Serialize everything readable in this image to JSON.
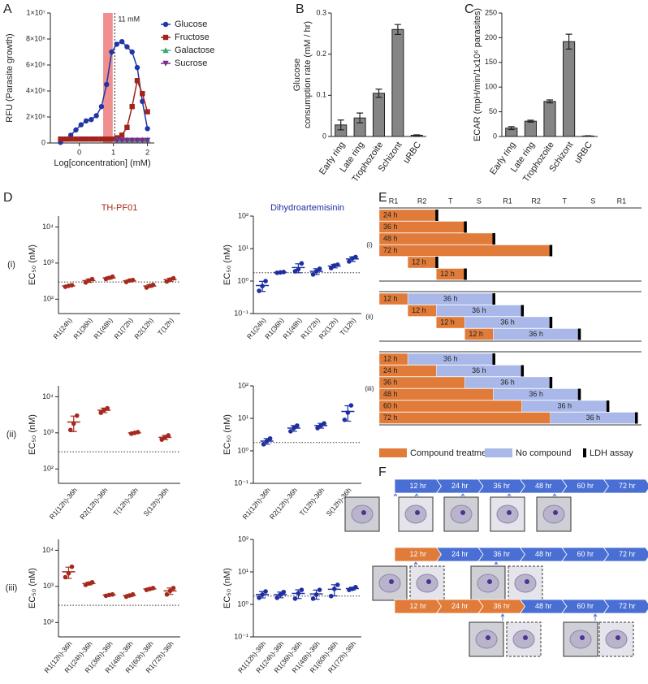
{
  "chart_data": [
    {
      "type": "line",
      "panel": "A",
      "xlabel": "Log[concentration] (mM)",
      "ylabel": "RFU (Parasite growth)",
      "x": [
        -0.55,
        -0.4,
        -0.25,
        -0.1,
        0.05,
        0.2,
        0.35,
        0.5,
        0.65,
        0.8,
        0.95,
        1.1,
        1.25,
        1.4,
        1.55,
        1.7,
        1.85,
        2.0
      ],
      "series": [
        {
          "name": "Glucose",
          "color": "#1f35a8",
          "marker": "circle",
          "values": [
            50000,
            300000,
            600000,
            1000000,
            1400000,
            1700000,
            1800000,
            2100000,
            2800000,
            4500000,
            7000000,
            7600000,
            7800000,
            7400000,
            7000000,
            5800000,
            3200000,
            1100000
          ]
        },
        {
          "name": "Fructose",
          "color": "#a3221b",
          "marker": "square",
          "values": [
            300000,
            300000,
            300000,
            300000,
            300000,
            300000,
            300000,
            300000,
            300000,
            300000,
            300000,
            400000,
            600000,
            1200000,
            2800000,
            4800000,
            3800000,
            2400000
          ]
        },
        {
          "name": "Galactose",
          "color": "#3ea37a",
          "marker": "triangle-up",
          "values": [
            null,
            null,
            null,
            null,
            null,
            null,
            null,
            null,
            null,
            null,
            null,
            250000,
            250000,
            250000,
            250000,
            250000,
            250000,
            250000
          ]
        },
        {
          "name": "Sucrose",
          "color": "#7b2a8f",
          "marker": "triangle-down",
          "values": [
            null,
            null,
            null,
            null,
            null,
            null,
            null,
            null,
            null,
            null,
            null,
            200000,
            200000,
            200000,
            200000,
            200000,
            200000,
            200000
          ]
        }
      ],
      "xlim": [
        -0.85,
        2.2
      ],
      "xticks": [
        0,
        1,
        2
      ],
      "ylim": [
        0,
        10000000
      ],
      "yticks": [
        0,
        {
          "value": 2000000,
          "label": "2×10⁶"
        },
        {
          "value": 4000000,
          "label": "4×10⁶"
        },
        {
          "value": 6000000,
          "label": "6×10⁶"
        },
        {
          "value": 8000000,
          "label": "8×10⁶"
        },
        {
          "value": 10000000,
          "label": "1×10⁷"
        }
      ],
      "shaded": [
        0.7,
        0.98
      ],
      "shaded_color": "#ef8f8f",
      "vline": 1.04,
      "annotation": "11 mM",
      "legend": "top-right"
    },
    {
      "type": "bar",
      "panel": "B",
      "ylabel": [
        "Glucose",
        "consumption rate (mM / hr)"
      ],
      "categories": [
        "Early ring",
        "Late ring",
        "Trophozoite",
        "Schizont",
        "uRBC"
      ],
      "values": [
        0.028,
        0.045,
        0.105,
        0.26,
        0.003
      ],
      "errors": [
        0.012,
        0.012,
        0.01,
        0.012,
        0.001
      ],
      "color": "#858585",
      "ylim": [
        0,
        0.3
      ],
      "yticks": [
        0,
        0.1,
        0.2,
        0.3
      ]
    },
    {
      "type": "bar",
      "panel": "C",
      "ylabel": "ECAR (mpH/min/1x10⁶ parasites)",
      "categories": [
        "Early ring",
        "Late ring",
        "Trophozoite",
        "Schizont",
        "uRBC"
      ],
      "values": [
        17,
        31,
        71,
        192,
        1
      ],
      "errors": [
        3,
        2,
        3,
        15,
        0.5
      ],
      "color": "#858585",
      "ylim": [
        0,
        250
      ],
      "yticks": [
        0,
        50,
        100,
        150,
        200,
        250
      ]
    },
    {
      "type": "dot",
      "panel": "D",
      "title": "TH-PF01",
      "row": "(i)",
      "ylabel": "EC₅₀ (nM)",
      "color": "#a52a1e",
      "log": true,
      "categories": [
        "R1(24h)",
        "R1(36h)",
        "R1(48h)",
        "R1(72h)",
        "R2(12h)",
        "T(12h)"
      ],
      "points": [
        [
          220,
          235,
          245
        ],
        [
          290,
          330,
          360
        ],
        [
          360,
          390,
          420
        ],
        [
          300,
          330,
          340
        ],
        [
          210,
          235,
          250
        ],
        [
          310,
          350,
          380
        ]
      ],
      "values": [
        233,
        327,
        390,
        323,
        232,
        347
      ],
      "errors": [
        13,
        35,
        30,
        21,
        20,
        35
      ],
      "ylim": [
        40,
        20000
      ],
      "yticks": [
        {
          "value": 100,
          "label": "10²"
        },
        {
          "value": 1000,
          "label": "10³"
        },
        {
          "value": 10000,
          "label": "10⁴"
        }
      ],
      "reference": 300
    },
    {
      "type": "dot",
      "title": "Dihydroartemisinin",
      "ylabel": "EC₅₀ (nM)",
      "color": "#1e2fa0",
      "log": true,
      "categories": [
        "R1(24h)",
        "R1(36h)",
        "R1(48h)",
        "R1(72h)",
        "R2(12h)",
        "T(12h)"
      ],
      "points": [
        [
          0.5,
          0.7,
          1.0
        ],
        [
          1.8,
          1.85,
          1.9
        ],
        [
          2.0,
          2.3,
          3.5
        ],
        [
          1.6,
          2.0,
          2.4
        ],
        [
          2.5,
          3.0,
          3.2
        ],
        [
          4.0,
          5.0,
          5.5
        ]
      ],
      "values": [
        0.73,
        1.85,
        2.6,
        2.0,
        2.9,
        4.8
      ],
      "errors": [
        0.25,
        0.05,
        0.8,
        0.4,
        0.36,
        0.76
      ],
      "ylim": [
        0.1,
        100
      ],
      "yticks": [
        {
          "value": 0.1,
          "label": "10⁻¹"
        },
        {
          "value": 1,
          "label": "10⁰"
        },
        {
          "value": 10,
          "label": "10¹"
        },
        {
          "value": 100,
          "label": "10²"
        }
      ],
      "reference": 1.8
    },
    {
      "type": "dot",
      "row": "(ii)",
      "ylabel": "EC₅₀ (nM)",
      "color": "#a52a1e",
      "log": true,
      "categories": [
        "R1(12h)-36h",
        "R2(12h)-36h",
        "T(12h)-36h",
        "S(12h)-36h"
      ],
      "points": [
        [
          1200,
          1800,
          3000
        ],
        [
          3600,
          4300,
          4800
        ],
        [
          950,
          1000,
          1050
        ],
        [
          650,
          750,
          850
        ]
      ],
      "values": [
        2000,
        4233,
        1000,
        750
      ],
      "errors": [
        915,
        603,
        50,
        100
      ],
      "ylim": [
        40,
        20000
      ],
      "yticks": [
        {
          "value": 100,
          "label": "10²"
        },
        {
          "value": 1000,
          "label": "10³"
        },
        {
          "value": 10000,
          "label": "10⁴"
        }
      ],
      "reference": 300
    },
    {
      "type": "dot",
      "ylabel": "EC₅₀ (nM)",
      "color": "#1e2fa0",
      "log": true,
      "categories": [
        "R1(12h)-36h",
        "R2(12h)-36h",
        "T(12h)-36h",
        "S(12h)-36h"
      ],
      "points": [
        [
          1.6,
          2.0,
          2.4
        ],
        [
          4.0,
          5.0,
          6.0
        ],
        [
          5.0,
          6.0,
          7.0
        ],
        [
          9,
          15,
          25
        ]
      ],
      "values": [
        2.0,
        5.0,
        6.0,
        16.3
      ],
      "errors": [
        0.4,
        1.0,
        1.0,
        8.1
      ],
      "ylim": [
        0.1,
        100
      ],
      "yticks": [
        {
          "value": 0.1,
          "label": "10⁻¹"
        },
        {
          "value": 1,
          "label": "10⁰"
        },
        {
          "value": 10,
          "label": "10¹"
        },
        {
          "value": 100,
          "label": "10²"
        }
      ],
      "reference": 1.8
    },
    {
      "type": "dot",
      "row": "(iii)",
      "ylabel": "EC₅₀ (nM)",
      "color": "#a52a1e",
      "log": true,
      "categories": [
        "R1(12h)-36h",
        "R1(24h)-36h",
        "R1(36h)-36h",
        "R1(48h)-36h",
        "R1(60h)-36h",
        "R1(72h)-36h"
      ],
      "points": [
        [
          1800,
          2300,
          3500
        ],
        [
          1100,
          1200,
          1300
        ],
        [
          550,
          580,
          600
        ],
        [
          520,
          560,
          600
        ],
        [
          800,
          850,
          900
        ],
        [
          600,
          750,
          900
        ]
      ],
      "values": [
        2533,
        1200,
        577,
        560,
        850,
        750
      ],
      "errors": [
        874,
        100,
        25,
        40,
        50,
        150
      ],
      "ylim": [
        40,
        20000
      ],
      "yticks": [
        {
          "value": 100,
          "label": "10²"
        },
        {
          "value": 1000,
          "label": "10³"
        },
        {
          "value": 10000,
          "label": "10⁴"
        }
      ],
      "reference": 300
    },
    {
      "type": "dot",
      "ylabel": "EC₅₀ (nM)",
      "color": "#1e2fa0",
      "log": true,
      "categories": [
        "R1(12h)-36h",
        "R1(24h)-36h",
        "R1(36h)-36h",
        "R1(48h)-36h",
        "R1(60h)-36h",
        "R1(72h)-36h"
      ],
      "points": [
        [
          1.6,
          2.0,
          2.5
        ],
        [
          1.6,
          2.0,
          2.4
        ],
        [
          1.5,
          2.2,
          2.8
        ],
        [
          1.5,
          2.0,
          2.8
        ],
        [
          1.8,
          3.0,
          4.0
        ],
        [
          2.8,
          3.0,
          3.4
        ]
      ],
      "values": [
        2.03,
        2.0,
        2.17,
        2.1,
        2.93,
        3.07
      ],
      "errors": [
        0.45,
        0.4,
        0.65,
        0.66,
        1.1,
        0.31
      ],
      "ylim": [
        0.1,
        100
      ],
      "yticks": [
        {
          "value": 0.1,
          "label": "10⁻¹"
        },
        {
          "value": 1,
          "label": "10⁰"
        },
        {
          "value": 10,
          "label": "10¹"
        },
        {
          "value": 100,
          "label": "10²"
        }
      ],
      "reference": 1.8
    }
  ],
  "timeline": {
    "panel": "E",
    "stages": [
      "R1",
      "R2",
      "T",
      "S",
      "R1",
      "R2",
      "T",
      "S",
      "R1"
    ],
    "xlim": [
      0,
      108
    ],
    "groups": [
      {
        "label": "(i)",
        "rows": [
          [
            {
              "start": 0,
              "hours": 24,
              "label": "24 h",
              "kind": "compound"
            }
          ],
          [
            {
              "start": 0,
              "hours": 36,
              "label": "36 h",
              "kind": "compound"
            }
          ],
          [
            {
              "start": 0,
              "hours": 48,
              "label": "48 h",
              "kind": "compound"
            }
          ],
          [
            {
              "start": 0,
              "hours": 72,
              "label": "72 h",
              "kind": "compound"
            }
          ],
          [
            {
              "start": 12,
              "hours": 12,
              "label": "12 h",
              "kind": "compound"
            }
          ],
          [
            {
              "start": 24,
              "hours": 12,
              "label": "12 h",
              "kind": "compound"
            }
          ]
        ]
      },
      {
        "label": "(ii)",
        "rows": [
          [
            {
              "start": 0,
              "hours": 12,
              "label": "12 h",
              "kind": "compound"
            },
            {
              "start": 12,
              "hours": 36,
              "label": "36 h",
              "kind": "none"
            }
          ],
          [
            {
              "start": 12,
              "hours": 12,
              "label": "12 h",
              "kind": "compound"
            },
            {
              "start": 24,
              "hours": 36,
              "label": "36 h",
              "kind": "none"
            }
          ],
          [
            {
              "start": 24,
              "hours": 12,
              "label": "12 h",
              "kind": "compound"
            },
            {
              "start": 36,
              "hours": 36,
              "label": "36 h",
              "kind": "none"
            }
          ],
          [
            {
              "start": 36,
              "hours": 12,
              "label": "12 h",
              "kind": "compound"
            },
            {
              "start": 48,
              "hours": 36,
              "label": "36 h",
              "kind": "none"
            }
          ]
        ]
      },
      {
        "label": "(iii)",
        "rows": [
          [
            {
              "start": 0,
              "hours": 12,
              "label": "12 h",
              "kind": "compound"
            },
            {
              "start": 12,
              "hours": 36,
              "label": "36 h",
              "kind": "none"
            }
          ],
          [
            {
              "start": 0,
              "hours": 24,
              "label": "24 h",
              "kind": "compound"
            },
            {
              "start": 24,
              "hours": 36,
              "label": "36 h",
              "kind": "none"
            }
          ],
          [
            {
              "start": 0,
              "hours": 36,
              "label": "36 h",
              "kind": "compound"
            },
            {
              "start": 36,
              "hours": 36,
              "label": "36 h",
              "kind": "none"
            }
          ],
          [
            {
              "start": 0,
              "hours": 48,
              "label": "48 h",
              "kind": "compound"
            },
            {
              "start": 48,
              "hours": 36,
              "label": "36 h",
              "kind": "none"
            }
          ],
          [
            {
              "start": 0,
              "hours": 60,
              "label": "60 h",
              "kind": "compound"
            },
            {
              "start": 60,
              "hours": 36,
              "label": "36 h",
              "kind": "none"
            }
          ],
          [
            {
              "start": 0,
              "hours": 72,
              "label": "72 h",
              "kind": "compound"
            },
            {
              "start": 72,
              "hours": 36,
              "label": "36 h",
              "kind": "none"
            }
          ]
        ]
      }
    ],
    "legend": [
      {
        "kind": "compound",
        "label": "Compound treatment",
        "color": "#e07b39"
      },
      {
        "kind": "none",
        "label": "No compound",
        "color": "#a9b8e8"
      },
      {
        "kind": "assay",
        "label": "LDH assay",
        "color": "#000000"
      }
    ]
  },
  "stages_figure": {
    "panel": "F",
    "treated_color": "#e07b39",
    "untreated_color": "#4a6fd4",
    "rows": [
      {
        "segments": [
          "12 hr",
          "24 hr",
          "36 hr",
          "48 hr",
          "60 hr",
          "72 hr"
        ],
        "treated": 0
      },
      {
        "segments": [
          "12 hr",
          "24 hr",
          "36 hr",
          "48 hr",
          "60 hr",
          "72 hr"
        ],
        "treated": 1
      },
      {
        "segments": [
          "12 hr",
          "24 hr",
          "36 hr",
          "48 hr",
          "60 hr",
          "72 hr"
        ],
        "treated": 3
      }
    ]
  }
}
